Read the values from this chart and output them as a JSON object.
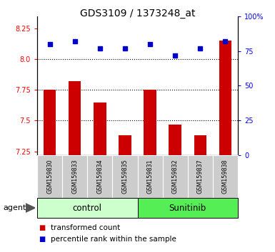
{
  "title": "GDS3109 / 1373248_at",
  "samples": [
    "GSM159830",
    "GSM159833",
    "GSM159834",
    "GSM159835",
    "GSM159831",
    "GSM159832",
    "GSM159837",
    "GSM159838"
  ],
  "red_values": [
    7.75,
    7.82,
    7.65,
    7.38,
    7.75,
    7.47,
    7.38,
    8.15
  ],
  "blue_values": [
    80,
    82,
    77,
    77,
    80,
    72,
    77,
    82
  ],
  "bar_bottom": 7.22,
  "ylim_left": [
    7.22,
    8.35
  ],
  "ylim_right": [
    0,
    100
  ],
  "yticks_left": [
    7.25,
    7.5,
    7.75,
    8.0,
    8.25
  ],
  "yticks_right": [
    0,
    25,
    50,
    75,
    100
  ],
  "ytick_labels_right": [
    "0",
    "25",
    "50",
    "75",
    "100%"
  ],
  "hlines": [
    7.5,
    7.75,
    8.0
  ],
  "bar_color": "#cc0000",
  "dot_color": "#0000cc",
  "control_label": "control",
  "sunitinib_label": "Sunitinib",
  "control_color": "#ccffcc",
  "sunitinib_color": "#55ee55",
  "bg_color": "#cccccc",
  "plot_bg_color": "#ffffff",
  "legend1_label": "transformed count",
  "legend2_label": "percentile rank within the sample",
  "agent_label": "agent",
  "n_control": 4,
  "n_sunitinib": 4
}
